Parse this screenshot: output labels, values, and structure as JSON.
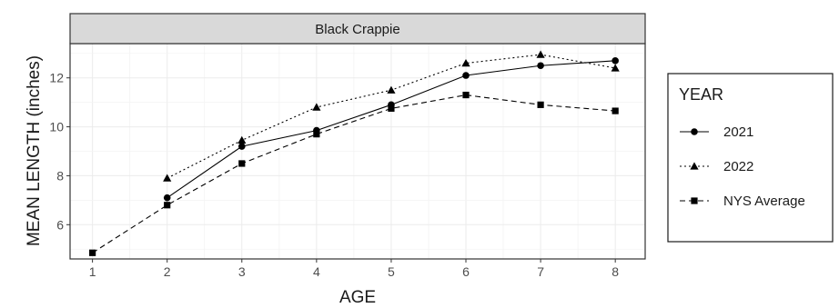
{
  "chart_data": {
    "type": "line",
    "strip_title": "Black Crappie",
    "xlabel": "AGE",
    "ylabel": "MEAN LENGTH (inches)",
    "x_ticks": [
      1,
      2,
      3,
      4,
      5,
      6,
      7,
      8
    ],
    "y_ticks": [
      6,
      8,
      10,
      12
    ],
    "xlim": [
      0.7,
      8.4
    ],
    "ylim": [
      4.6,
      13.4
    ],
    "grid": true,
    "legend": {
      "title": "YEAR",
      "position": "right"
    },
    "series": [
      {
        "name": "2021",
        "line_style": "solid",
        "marker": "circle",
        "x": [
          2,
          3,
          4,
          5,
          6,
          7,
          8
        ],
        "y": [
          7.1,
          9.2,
          9.85,
          10.9,
          12.1,
          12.5,
          12.7
        ]
      },
      {
        "name": "2022",
        "line_style": "dotted",
        "marker": "triangle",
        "x": [
          2,
          3,
          4,
          5,
          6,
          7,
          8
        ],
        "y": [
          7.9,
          9.45,
          10.8,
          11.5,
          12.6,
          12.95,
          12.4
        ]
      },
      {
        "name": "NYS Average",
        "line_style": "dashed",
        "marker": "square",
        "x": [
          1,
          2,
          3,
          4,
          5,
          6,
          7,
          8
        ],
        "y": [
          4.85,
          6.8,
          8.5,
          9.7,
          10.75,
          11.3,
          10.9,
          10.65
        ]
      }
    ]
  }
}
